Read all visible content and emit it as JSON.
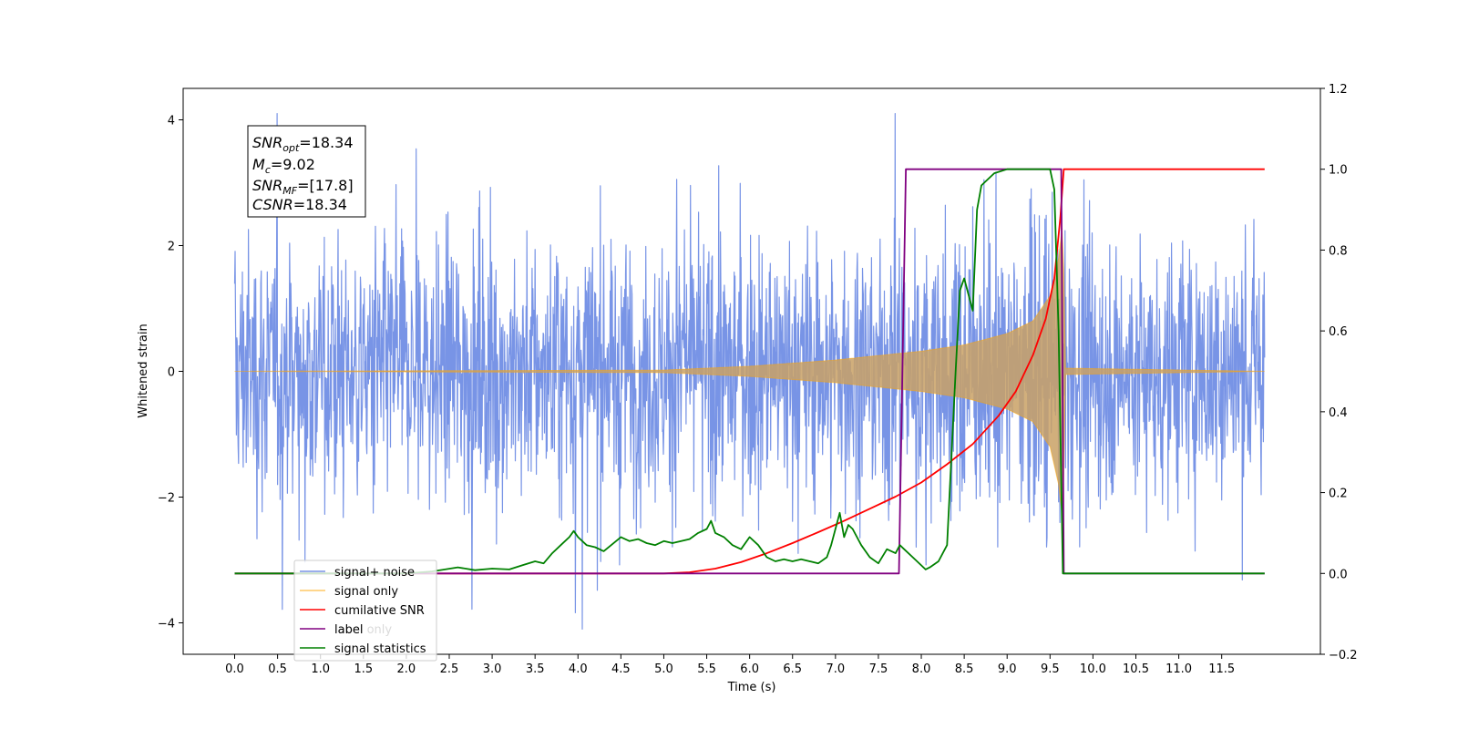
{
  "chart_data": {
    "type": "line",
    "title": "",
    "xlabel": "Time (s)",
    "ylabel": "Whitened strain",
    "y2label": "",
    "xlim": [
      -0.6,
      12.65
    ],
    "ylim": [
      -4.5,
      4.5
    ],
    "y2lim": [
      -0.2,
      1.2
    ],
    "x_ticks": [
      "0.0",
      "0.5",
      "1.0",
      "1.5",
      "2.0",
      "2.5",
      "3.0",
      "3.5",
      "4.0",
      "4.5",
      "5.0",
      "5.5",
      "6.0",
      "6.5",
      "7.0",
      "7.5",
      "8.0",
      "8.5",
      "9.0",
      "9.5",
      "10.0",
      "10.5",
      "11.0",
      "11.5"
    ],
    "y_ticks": [
      "−4",
      "−2",
      "0",
      "2",
      "4"
    ],
    "y2_ticks": [
      "−0.2",
      "0.0",
      "0.2",
      "0.4",
      "0.6",
      "0.8",
      "1.0",
      "1.2"
    ],
    "grid": false,
    "legend_position": "lower-left",
    "annotation": {
      "snr_opt": {
        "symbol": "SNR",
        "sub": "opt",
        "value": "=18.34"
      },
      "mc": {
        "symbol": "M",
        "sub": "c",
        "value": "=9.02"
      },
      "snr_mf": {
        "symbol": "SNR",
        "sub": "MF",
        "value": "=[17.8]"
      },
      "csnr": {
        "symbol": "CSNR",
        "sub": "",
        "value": "=18.34"
      }
    },
    "series": [
      {
        "name": "signal+ noise",
        "axis": "left",
        "color": "#7894e6",
        "noise_amplitude_range": [
          -4.1,
          4.1
        ],
        "x_range": [
          0.0,
          12.0
        ]
      },
      {
        "name": "signal only",
        "axis": "left",
        "color": "#ffa500",
        "envelope": {
          "x": [
            0.0,
            5.0,
            6.0,
            7.0,
            7.5,
            8.0,
            8.5,
            9.0,
            9.3,
            9.5,
            9.6,
            9.65,
            9.68,
            12.0
          ],
          "amplitude": [
            0.0,
            0.02,
            0.08,
            0.18,
            0.25,
            0.32,
            0.42,
            0.6,
            0.8,
            1.2,
            1.8,
            2.4,
            0.05,
            0.0
          ]
        }
      },
      {
        "name": "cumilative SNR",
        "axis": "right",
        "color": "#ff0000",
        "x": [
          0.0,
          5.0,
          5.3,
          5.6,
          5.9,
          6.2,
          6.5,
          6.8,
          7.1,
          7.4,
          7.7,
          8.0,
          8.3,
          8.6,
          8.9,
          9.1,
          9.3,
          9.45,
          9.55,
          9.62,
          9.65,
          9.66,
          12.0
        ],
        "values": [
          0.0,
          0.0,
          0.003,
          0.012,
          0.028,
          0.05,
          0.075,
          0.102,
          0.13,
          0.16,
          0.19,
          0.225,
          0.27,
          0.32,
          0.39,
          0.45,
          0.54,
          0.63,
          0.73,
          0.88,
          0.97,
          1.0,
          1.0
        ]
      },
      {
        "name": "label",
        "axis": "right",
        "color": "#800080",
        "x": [
          0.0,
          7.74,
          7.82,
          9.63,
          9.66,
          12.0
        ],
        "values": [
          0.0,
          0.0,
          1.0,
          1.0,
          0.0,
          0.0
        ]
      },
      {
        "name": "label only",
        "axis": "right",
        "color": "#800080",
        "hidden": true
      },
      {
        "name": "signal statistics",
        "axis": "right",
        "color": "#008000",
        "x": [
          0.0,
          2.0,
          2.3,
          2.6,
          2.8,
          3.0,
          3.2,
          3.35,
          3.5,
          3.6,
          3.7,
          3.8,
          3.9,
          3.95,
          4.0,
          4.1,
          4.2,
          4.3,
          4.5,
          4.6,
          4.7,
          4.8,
          4.9,
          5.0,
          5.1,
          5.3,
          5.4,
          5.5,
          5.55,
          5.6,
          5.7,
          5.8,
          5.9,
          6.0,
          6.1,
          6.2,
          6.3,
          6.4,
          6.5,
          6.6,
          6.7,
          6.8,
          6.9,
          6.95,
          7.0,
          7.05,
          7.1,
          7.15,
          7.2,
          7.3,
          7.4,
          7.5,
          7.6,
          7.7,
          7.75,
          7.8,
          7.9,
          8.0,
          8.05,
          8.1,
          8.2,
          8.3,
          8.4,
          8.45,
          8.5,
          8.6,
          8.65,
          8.7,
          8.75,
          8.85,
          9.0,
          9.1,
          9.3,
          9.5,
          9.55,
          9.6,
          9.65,
          9.7,
          12.0
        ],
        "values": [
          0.0,
          0.0,
          0.005,
          0.015,
          0.008,
          0.012,
          0.01,
          0.02,
          0.03,
          0.025,
          0.05,
          0.07,
          0.09,
          0.105,
          0.09,
          0.07,
          0.065,
          0.055,
          0.09,
          0.08,
          0.085,
          0.075,
          0.07,
          0.08,
          0.075,
          0.085,
          0.1,
          0.11,
          0.13,
          0.1,
          0.09,
          0.07,
          0.06,
          0.09,
          0.07,
          0.04,
          0.03,
          0.035,
          0.03,
          0.035,
          0.03,
          0.025,
          0.04,
          0.07,
          0.11,
          0.15,
          0.09,
          0.12,
          0.11,
          0.07,
          0.04,
          0.025,
          0.06,
          0.05,
          0.07,
          0.06,
          0.04,
          0.02,
          0.01,
          0.015,
          0.03,
          0.07,
          0.5,
          0.7,
          0.73,
          0.65,
          0.9,
          0.96,
          0.97,
          0.99,
          1.0,
          1.0,
          1.0,
          1.0,
          0.95,
          0.6,
          0.0,
          0.0,
          0.0
        ]
      }
    ]
  }
}
